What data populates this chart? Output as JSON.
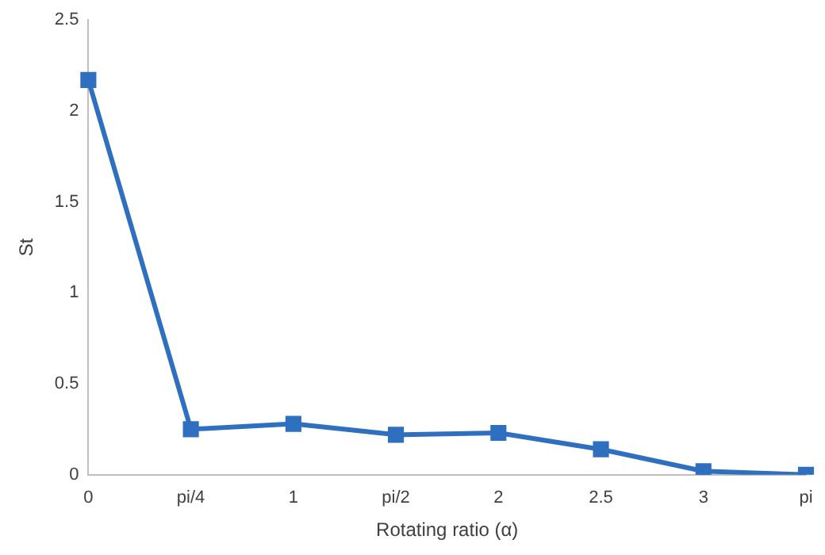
{
  "chart_data": {
    "type": "line",
    "xlabel": "Rotating ratio (α)",
    "ylabel": "St",
    "categories": [
      "0",
      "pi/4",
      "1",
      "pi/2",
      "2",
      "2.5",
      "3",
      "pi"
    ],
    "series": [
      {
        "color": "#2f6fc0",
        "values": [
          2.17,
          0.25,
          0.28,
          0.22,
          0.23,
          0.14,
          0.02,
          0
        ]
      }
    ],
    "ylim": [
      0,
      2.5
    ],
    "yticks": [
      0,
      0.5,
      1,
      1.5,
      2,
      2.5
    ],
    "grid": false,
    "legend": false,
    "marker": "square",
    "line_style": "solid"
  }
}
